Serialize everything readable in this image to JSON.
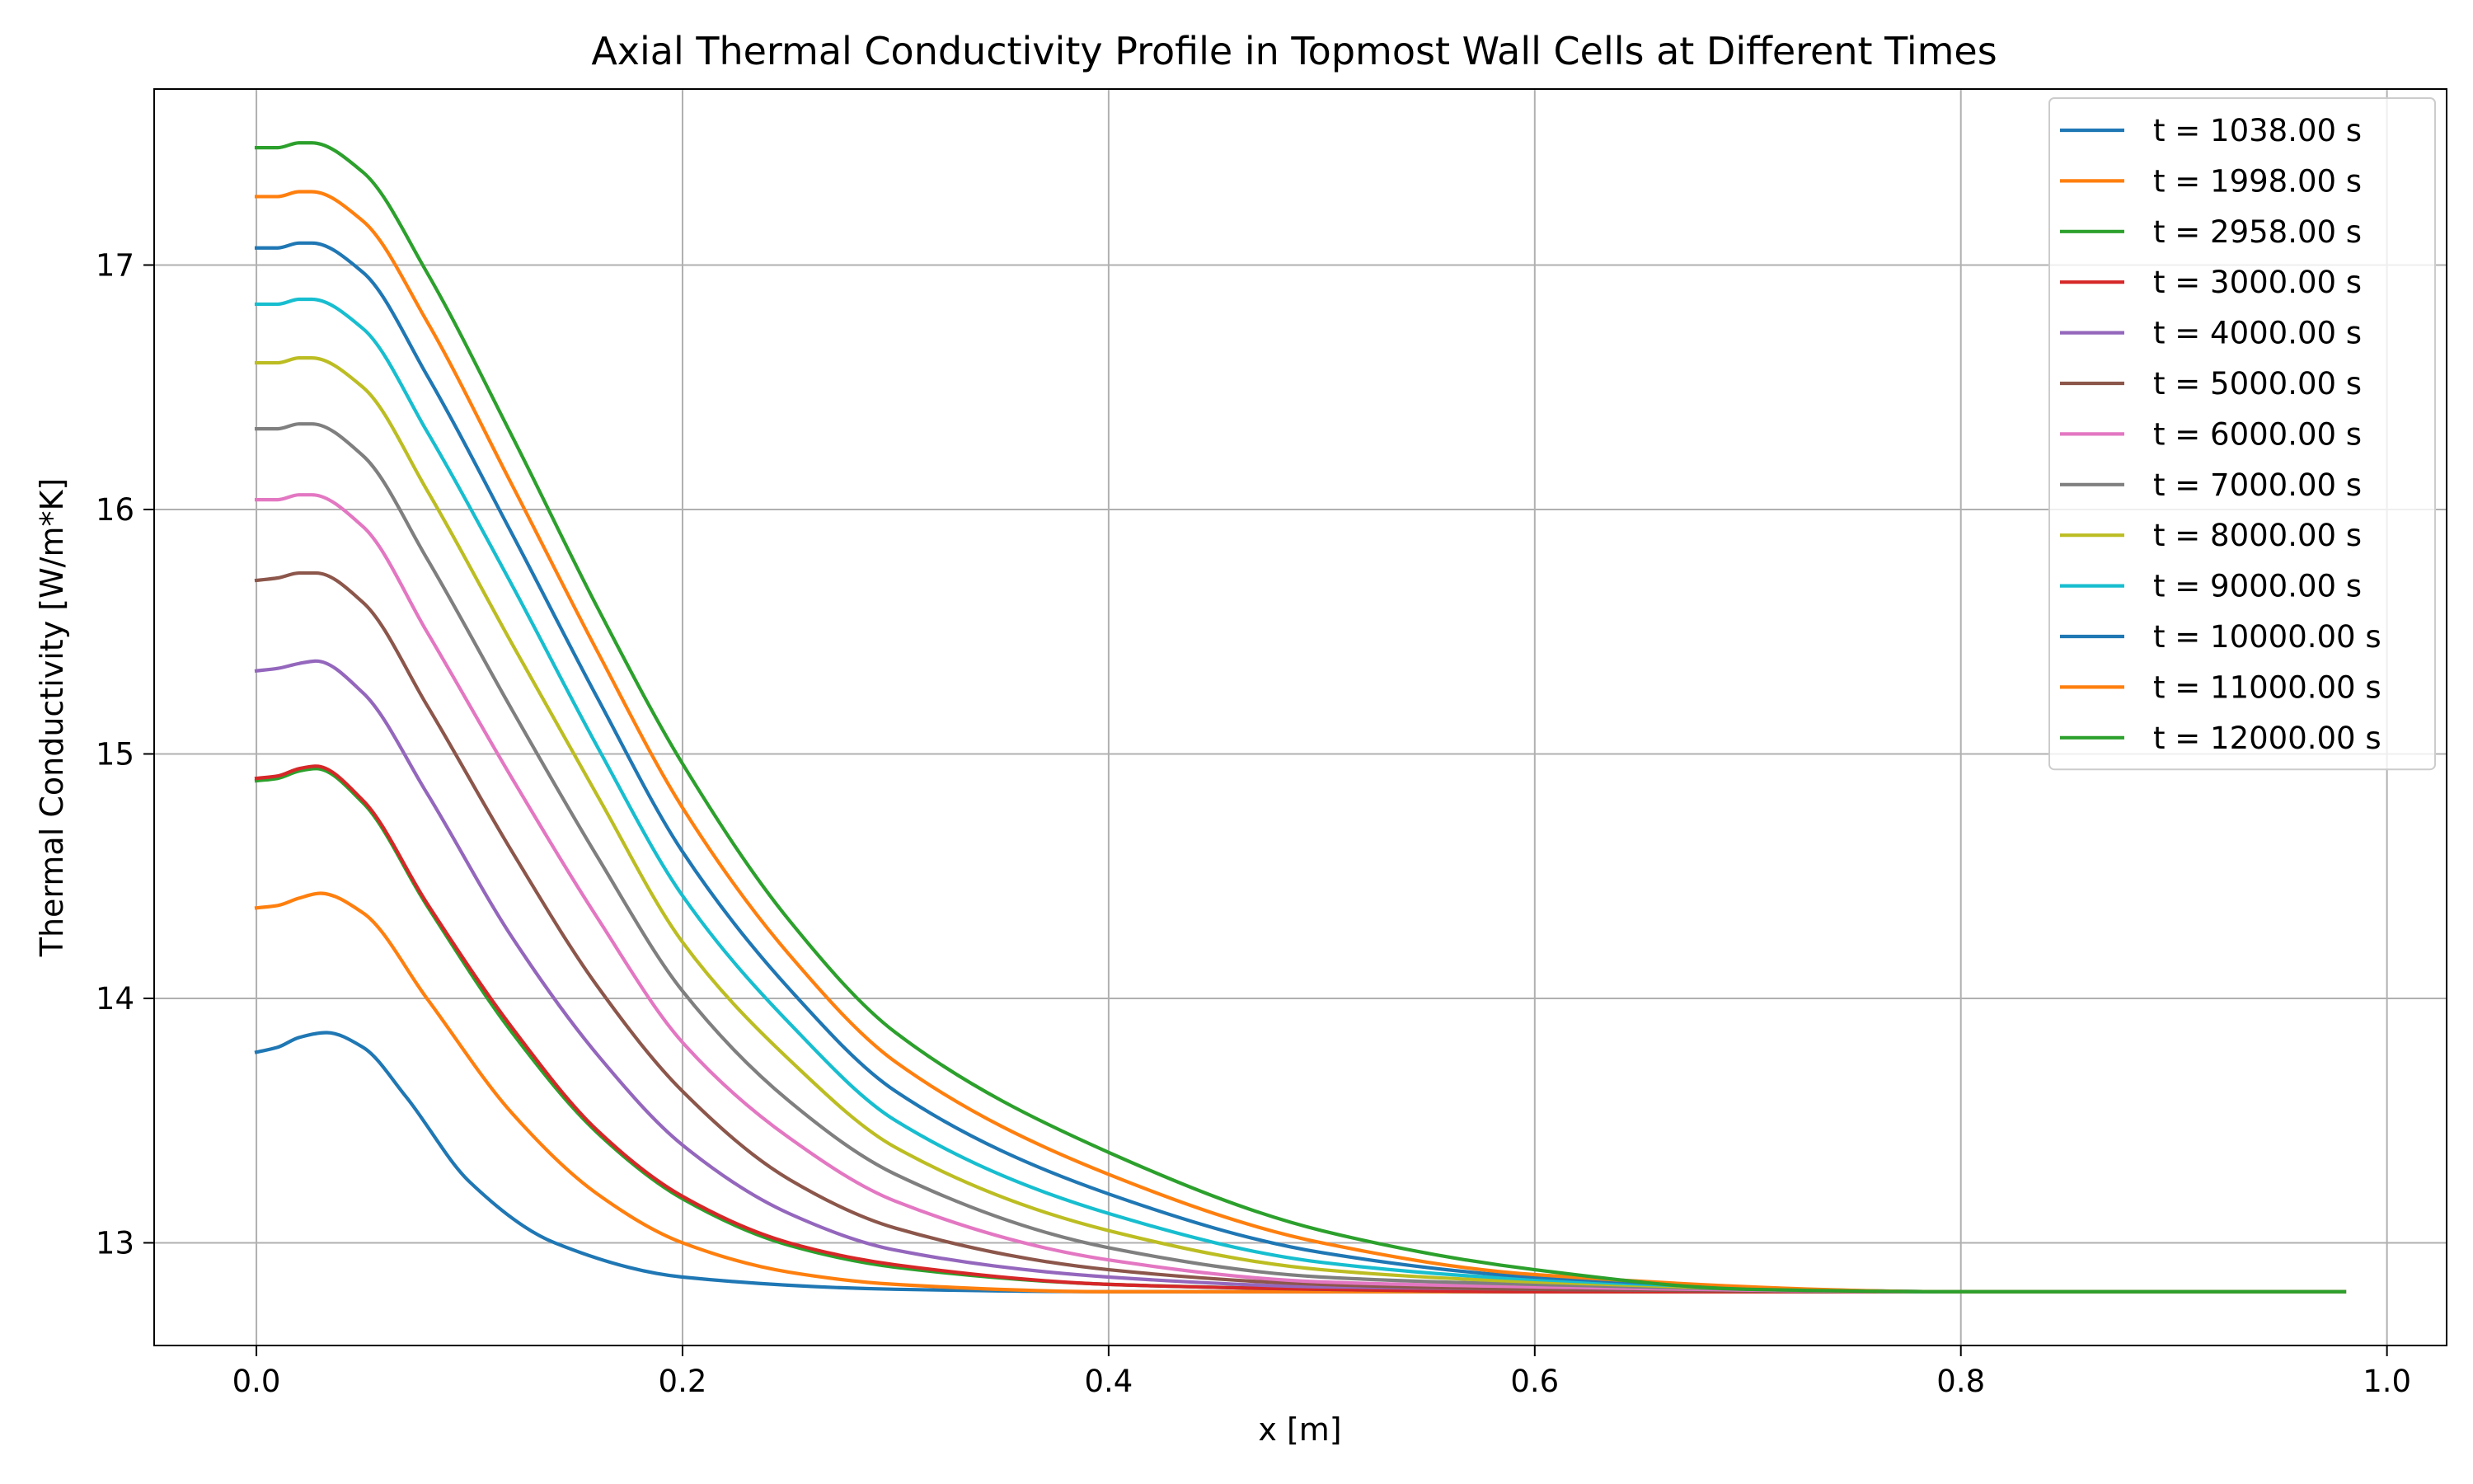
{
  "chart_data": {
    "type": "line",
    "title": "Axial Thermal Conductivity Profile in Topmost Wall Cells at Different Times",
    "xlabel": "x [m]",
    "ylabel": "Thermal Conductivity [W/m*K]",
    "xlim": [
      -0.048,
      1.028
    ],
    "ylim": [
      12.58,
      17.72
    ],
    "x_ticks": [
      0.0,
      0.2,
      0.4,
      0.6,
      0.8,
      1.0
    ],
    "x_tick_labels": [
      "0.0",
      "0.2",
      "0.4",
      "0.6",
      "0.8",
      "1.0"
    ],
    "y_ticks": [
      13,
      14,
      15,
      16,
      17
    ],
    "y_tick_labels": [
      "13",
      "14",
      "15",
      "16",
      "17"
    ],
    "grid": true,
    "legend_position": "top-right",
    "series": [
      {
        "name": "t = 1038.00 s",
        "color": "#1f77b4",
        "x": [
          0.0,
          0.01,
          0.02,
          0.033,
          0.05,
          0.07,
          0.1,
          0.14,
          0.2,
          0.3,
          0.4,
          0.6,
          0.8,
          0.98
        ],
        "y": [
          13.78,
          13.8,
          13.84,
          13.86,
          13.8,
          13.6,
          13.25,
          13.0,
          12.86,
          12.81,
          12.8,
          12.8,
          12.8,
          12.8
        ]
      },
      {
        "name": "t = 1998.00 s",
        "color": "#ff7f0e",
        "x": [
          0.0,
          0.01,
          0.02,
          0.03,
          0.05,
          0.08,
          0.12,
          0.16,
          0.2,
          0.25,
          0.3,
          0.4,
          0.5,
          0.6,
          0.8,
          0.98
        ],
        "y": [
          14.37,
          14.38,
          14.41,
          14.43,
          14.35,
          14.0,
          13.53,
          13.2,
          13.0,
          12.88,
          12.83,
          12.8,
          12.8,
          12.8,
          12.8,
          12.8
        ]
      },
      {
        "name": "t = 2958.00 s",
        "color": "#2ca02c",
        "x": [
          0.0,
          0.01,
          0.02,
          0.028,
          0.05,
          0.08,
          0.12,
          0.16,
          0.2,
          0.25,
          0.3,
          0.4,
          0.5,
          0.6,
          0.8,
          0.98
        ],
        "y": [
          14.89,
          14.9,
          14.93,
          14.94,
          14.8,
          14.38,
          13.86,
          13.45,
          13.18,
          12.99,
          12.9,
          12.83,
          12.81,
          12.8,
          12.8,
          12.8
        ]
      },
      {
        "name": "t = 3000.00 s",
        "color": "#d62728",
        "x": [
          0.0,
          0.01,
          0.02,
          0.028,
          0.05,
          0.08,
          0.12,
          0.16,
          0.2,
          0.25,
          0.3,
          0.4,
          0.5,
          0.6,
          0.8,
          0.98
        ],
        "y": [
          14.9,
          14.91,
          14.94,
          14.95,
          14.81,
          14.39,
          13.88,
          13.46,
          13.19,
          13.0,
          12.91,
          12.83,
          12.81,
          12.8,
          12.8,
          12.8
        ]
      },
      {
        "name": "t = 4000.00 s",
        "color": "#9467bd",
        "x": [
          0.0,
          0.01,
          0.02,
          0.028,
          0.05,
          0.08,
          0.12,
          0.16,
          0.2,
          0.25,
          0.3,
          0.4,
          0.5,
          0.6,
          0.8,
          0.98
        ],
        "y": [
          15.34,
          15.35,
          15.37,
          15.38,
          15.25,
          14.84,
          14.25,
          13.77,
          13.4,
          13.12,
          12.97,
          12.86,
          12.82,
          12.81,
          12.8,
          12.8
        ]
      },
      {
        "name": "t = 5000.00 s",
        "color": "#8c564b",
        "x": [
          0.0,
          0.01,
          0.02,
          0.028,
          0.05,
          0.08,
          0.12,
          0.16,
          0.2,
          0.25,
          0.3,
          0.4,
          0.5,
          0.6,
          0.8,
          0.98
        ],
        "y": [
          15.71,
          15.72,
          15.74,
          15.74,
          15.62,
          15.2,
          14.6,
          14.05,
          13.62,
          13.26,
          13.06,
          12.89,
          12.83,
          12.81,
          12.8,
          12.8
        ]
      },
      {
        "name": "t = 6000.00 s",
        "color": "#e377c2",
        "x": [
          0.0,
          0.01,
          0.02,
          0.026,
          0.05,
          0.08,
          0.12,
          0.16,
          0.2,
          0.25,
          0.3,
          0.4,
          0.5,
          0.6,
          0.8,
          0.98
        ],
        "y": [
          16.04,
          16.04,
          16.06,
          16.06,
          15.93,
          15.5,
          14.9,
          14.33,
          13.82,
          13.43,
          13.17,
          12.93,
          12.84,
          12.82,
          12.8,
          12.8
        ]
      },
      {
        "name": "t = 7000.00 s",
        "color": "#7f7f7f",
        "x": [
          0.0,
          0.01,
          0.02,
          0.026,
          0.05,
          0.08,
          0.12,
          0.16,
          0.2,
          0.25,
          0.3,
          0.4,
          0.5,
          0.6,
          0.8,
          0.98
        ],
        "y": [
          16.33,
          16.33,
          16.35,
          16.35,
          16.22,
          15.8,
          15.18,
          14.58,
          14.03,
          13.58,
          13.28,
          12.98,
          12.86,
          12.83,
          12.8,
          12.8
        ]
      },
      {
        "name": "t = 8000.00 s",
        "color": "#bcbd22",
        "x": [
          0.0,
          0.01,
          0.02,
          0.026,
          0.05,
          0.08,
          0.12,
          0.16,
          0.2,
          0.25,
          0.3,
          0.4,
          0.5,
          0.6,
          0.8,
          0.98
        ],
        "y": [
          16.6,
          16.6,
          16.62,
          16.62,
          16.5,
          16.08,
          15.45,
          14.83,
          14.23,
          13.75,
          13.39,
          13.05,
          12.89,
          12.84,
          12.8,
          12.8
        ]
      },
      {
        "name": "t = 9000.00 s",
        "color": "#17becf",
        "x": [
          0.0,
          0.01,
          0.02,
          0.026,
          0.05,
          0.08,
          0.12,
          0.16,
          0.2,
          0.25,
          0.3,
          0.4,
          0.5,
          0.6,
          0.8,
          0.98
        ],
        "y": [
          16.84,
          16.84,
          16.86,
          16.86,
          16.74,
          16.32,
          15.69,
          15.03,
          14.42,
          13.9,
          13.5,
          13.12,
          12.92,
          12.85,
          12.8,
          12.8
        ]
      },
      {
        "name": "t = 10000.00 s",
        "color": "#1f77b4",
        "x": [
          0.0,
          0.01,
          0.02,
          0.026,
          0.05,
          0.08,
          0.12,
          0.16,
          0.2,
          0.25,
          0.3,
          0.4,
          0.5,
          0.6,
          0.8,
          0.98
        ],
        "y": [
          17.07,
          17.07,
          17.09,
          17.09,
          16.97,
          16.55,
          15.9,
          15.23,
          14.6,
          14.04,
          13.62,
          13.2,
          12.96,
          12.86,
          12.8,
          12.8
        ]
      },
      {
        "name": "t = 11000.00 s",
        "color": "#ff7f0e",
        "x": [
          0.0,
          0.01,
          0.02,
          0.026,
          0.05,
          0.08,
          0.12,
          0.16,
          0.2,
          0.25,
          0.3,
          0.4,
          0.5,
          0.6,
          0.8,
          0.98
        ],
        "y": [
          17.28,
          17.28,
          17.3,
          17.3,
          17.18,
          16.77,
          16.1,
          15.42,
          14.78,
          14.18,
          13.74,
          13.28,
          13.0,
          12.87,
          12.8,
          12.8
        ]
      },
      {
        "name": "t = 12000.00 s",
        "color": "#2ca02c",
        "x": [
          0.0,
          0.01,
          0.02,
          0.026,
          0.05,
          0.08,
          0.12,
          0.16,
          0.2,
          0.25,
          0.3,
          0.4,
          0.5,
          0.6,
          0.7,
          0.8,
          0.98
        ],
        "y": [
          17.48,
          17.48,
          17.5,
          17.5,
          17.38,
          16.97,
          16.3,
          15.6,
          14.96,
          14.32,
          13.86,
          13.37,
          13.05,
          12.89,
          12.81,
          12.8,
          12.8
        ]
      }
    ]
  }
}
